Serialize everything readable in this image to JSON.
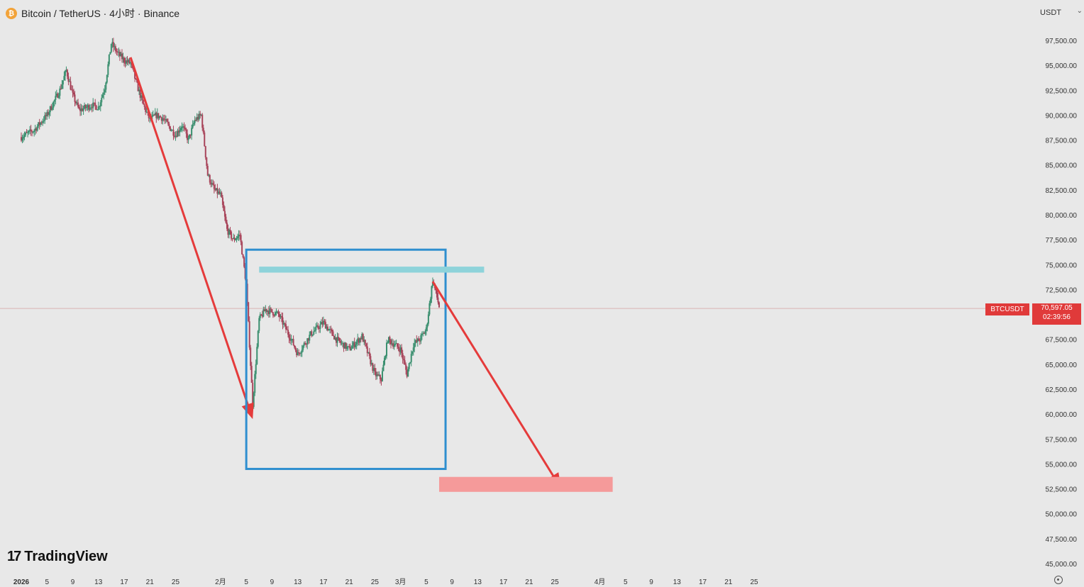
{
  "header": {
    "coin_icon_symbol": "₿",
    "title": "Bitcoin / TetherUS · 4小时 · Binance"
  },
  "currency": {
    "label": "USDT",
    "caret": "⌄"
  },
  "brand": {
    "logo_mark": "17",
    "name": "TradingView"
  },
  "price_tag": {
    "symbol": "BTCUSDT",
    "price": "70,597.05",
    "countdown": "02:39:56"
  },
  "colors": {
    "background": "#e8e8e8",
    "candle_up": "#3a8f6f",
    "candle_down": "#a8445a",
    "arrow": "#e53b3b",
    "range_box": "#2f8fcf",
    "resistance_band": "#8ed3da",
    "target_zone": "#f59a9a",
    "price_line": "#d9b5b5"
  },
  "chart_data": {
    "type": "candlestick",
    "title": "Bitcoin / TetherUS · 4小时 · Binance",
    "xlabel": "",
    "ylabel": "",
    "y_axis_unit": "USDT",
    "ylim": [
      44000,
      99500
    ],
    "y_ticks": [
      97500,
      95000,
      92500,
      90000,
      87500,
      85000,
      82500,
      80000,
      77500,
      75000,
      72500,
      67500,
      65000,
      62500,
      60000,
      57500,
      55000,
      52500,
      50000,
      47500,
      45000
    ],
    "y_tick_labels": [
      "97,500.00",
      "95,000.00",
      "92,500.00",
      "90,000.00",
      "87,500.00",
      "85,000.00",
      "82,500.00",
      "80,000.00",
      "77,500.00",
      "75,000.00",
      "72,500.00",
      "67,500.00",
      "65,000.00",
      "62,500.00",
      "60,000.00",
      "57,500.00",
      "55,000.00",
      "52,500.00",
      "50,000.00",
      "47,500.00",
      "45,000.00"
    ],
    "x_range": [
      "2026-01-01",
      "2026-04-25"
    ],
    "x_ticks": [
      {
        "date": "2026-01-01",
        "label": "2026"
      },
      {
        "date": "2026-01-05",
        "label": "5"
      },
      {
        "date": "2026-01-09",
        "label": "9"
      },
      {
        "date": "2026-01-13",
        "label": "13"
      },
      {
        "date": "2026-01-17",
        "label": "17"
      },
      {
        "date": "2026-01-21",
        "label": "21"
      },
      {
        "date": "2026-01-25",
        "label": "25"
      },
      {
        "date": "2026-02-01",
        "label": "2月"
      },
      {
        "date": "2026-02-05",
        "label": "5"
      },
      {
        "date": "2026-02-09",
        "label": "9"
      },
      {
        "date": "2026-02-13",
        "label": "13"
      },
      {
        "date": "2026-02-17",
        "label": "17"
      },
      {
        "date": "2026-02-21",
        "label": "21"
      },
      {
        "date": "2026-02-25",
        "label": "25"
      },
      {
        "date": "2026-03-01",
        "label": "3月"
      },
      {
        "date": "2026-03-05",
        "label": "5"
      },
      {
        "date": "2026-03-09",
        "label": "9"
      },
      {
        "date": "2026-03-13",
        "label": "13"
      },
      {
        "date": "2026-03-17",
        "label": "17"
      },
      {
        "date": "2026-03-21",
        "label": "21"
      },
      {
        "date": "2026-03-25",
        "label": "25"
      },
      {
        "date": "2026-04-01",
        "label": "4月"
      },
      {
        "date": "2026-04-05",
        "label": "5"
      },
      {
        "date": "2026-04-09",
        "label": "9"
      },
      {
        "date": "2026-04-13",
        "label": "13"
      },
      {
        "date": "2026-04-17",
        "label": "17"
      },
      {
        "date": "2026-04-21",
        "label": "21"
      },
      {
        "date": "2026-04-25",
        "label": "25"
      }
    ],
    "price_path": [
      {
        "date": "2026-01-01",
        "close": 87800
      },
      {
        "date": "2026-01-03",
        "close": 88500
      },
      {
        "date": "2026-01-05",
        "close": 90000
      },
      {
        "date": "2026-01-07",
        "close": 92500
      },
      {
        "date": "2026-01-08",
        "close": 94500
      },
      {
        "date": "2026-01-09",
        "close": 92000
      },
      {
        "date": "2026-01-10",
        "close": 90500
      },
      {
        "date": "2026-01-12",
        "close": 91000
      },
      {
        "date": "2026-01-13",
        "close": 90800
      },
      {
        "date": "2026-01-14",
        "close": 92800
      },
      {
        "date": "2026-01-15",
        "close": 97200
      },
      {
        "date": "2026-01-16",
        "close": 96200
      },
      {
        "date": "2026-01-17",
        "close": 95500
      },
      {
        "date": "2026-01-18",
        "close": 95200
      },
      {
        "date": "2026-01-19",
        "close": 93000
      },
      {
        "date": "2026-01-20",
        "close": 91000
      },
      {
        "date": "2026-01-21",
        "close": 89500
      },
      {
        "date": "2026-01-22",
        "close": 90000
      },
      {
        "date": "2026-01-23",
        "close": 89700
      },
      {
        "date": "2026-01-25",
        "close": 88000
      },
      {
        "date": "2026-01-26",
        "close": 89000
      },
      {
        "date": "2026-01-27",
        "close": 87500
      },
      {
        "date": "2026-01-28",
        "close": 89500
      },
      {
        "date": "2026-01-29",
        "close": 90000
      },
      {
        "date": "2026-01-30",
        "close": 84000
      },
      {
        "date": "2026-01-31",
        "close": 82500
      },
      {
        "date": "2026-02-01",
        "close": 82000
      },
      {
        "date": "2026-02-02",
        "close": 78500
      },
      {
        "date": "2026-02-03",
        "close": 77500
      },
      {
        "date": "2026-02-04",
        "close": 78000
      },
      {
        "date": "2026-02-05",
        "close": 73000
      },
      {
        "date": "2026-02-06",
        "close": 61000
      },
      {
        "date": "2026-02-07",
        "close": 69500
      },
      {
        "date": "2026-02-08",
        "close": 70500
      },
      {
        "date": "2026-02-10",
        "close": 70000
      },
      {
        "date": "2026-02-12",
        "close": 67500
      },
      {
        "date": "2026-02-13",
        "close": 66000
      },
      {
        "date": "2026-02-15",
        "close": 68000
      },
      {
        "date": "2026-02-17",
        "close": 69200
      },
      {
        "date": "2026-02-19",
        "close": 67500
      },
      {
        "date": "2026-02-21",
        "close": 66500
      },
      {
        "date": "2026-02-23",
        "close": 67800
      },
      {
        "date": "2026-02-25",
        "close": 64000
      },
      {
        "date": "2026-02-26",
        "close": 63500
      },
      {
        "date": "2026-02-27",
        "close": 67500
      },
      {
        "date": "2026-03-01",
        "close": 66500
      },
      {
        "date": "2026-03-02",
        "close": 64000
      },
      {
        "date": "2026-03-03",
        "close": 67000
      },
      {
        "date": "2026-03-04",
        "close": 67500
      },
      {
        "date": "2026-03-05",
        "close": 68500
      },
      {
        "date": "2026-03-06",
        "close": 73500
      },
      {
        "date": "2026-03-07",
        "close": 70800
      }
    ],
    "current_price": 70597.05,
    "annotations": [
      {
        "type": "arrow",
        "from": {
          "date": "2026-01-18",
          "price": 95800
        },
        "to": {
          "date": "2026-02-06",
          "price": 59500
        }
      },
      {
        "type": "rectangle",
        "from": {
          "date": "2026-02-05",
          "price": 76500
        },
        "to": {
          "date": "2026-03-08",
          "price": 54500
        }
      },
      {
        "type": "band",
        "from": {
          "date": "2026-02-07",
          "price": 74200
        },
        "to": {
          "date": "2026-03-14",
          "price": 74800
        }
      },
      {
        "type": "arrow",
        "from": {
          "date": "2026-03-06",
          "price": 73300
        },
        "to": {
          "date": "2026-03-26",
          "price": 52500
        }
      },
      {
        "type": "band",
        "from": {
          "date": "2026-03-07",
          "price": 52200
        },
        "to": {
          "date": "2026-04-03",
          "price": 53700
        }
      }
    ],
    "grid": false,
    "legend": "none"
  }
}
